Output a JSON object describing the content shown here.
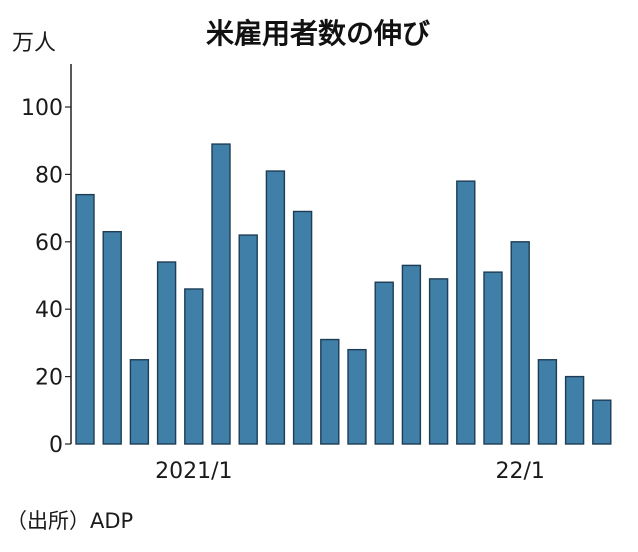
{
  "chart_data": {
    "type": "bar",
    "title": "米雇用者数の伸び",
    "ylabel": "万人",
    "source": "（出所）ADP",
    "ylim": [
      0,
      100
    ],
    "yticks": [
      0,
      20,
      40,
      60,
      80,
      100
    ],
    "x_tick_labels": [
      {
        "index": 4,
        "label": "2021/1"
      },
      {
        "index": 16,
        "label": "22/1"
      }
    ],
    "values": [
      74,
      63,
      25,
      54,
      46,
      89,
      62,
      81,
      69,
      31,
      28,
      48,
      53,
      49,
      78,
      51,
      60,
      25,
      20,
      13
    ],
    "bar_color": "#3f7fa8",
    "grid": false,
    "legend": "none"
  }
}
